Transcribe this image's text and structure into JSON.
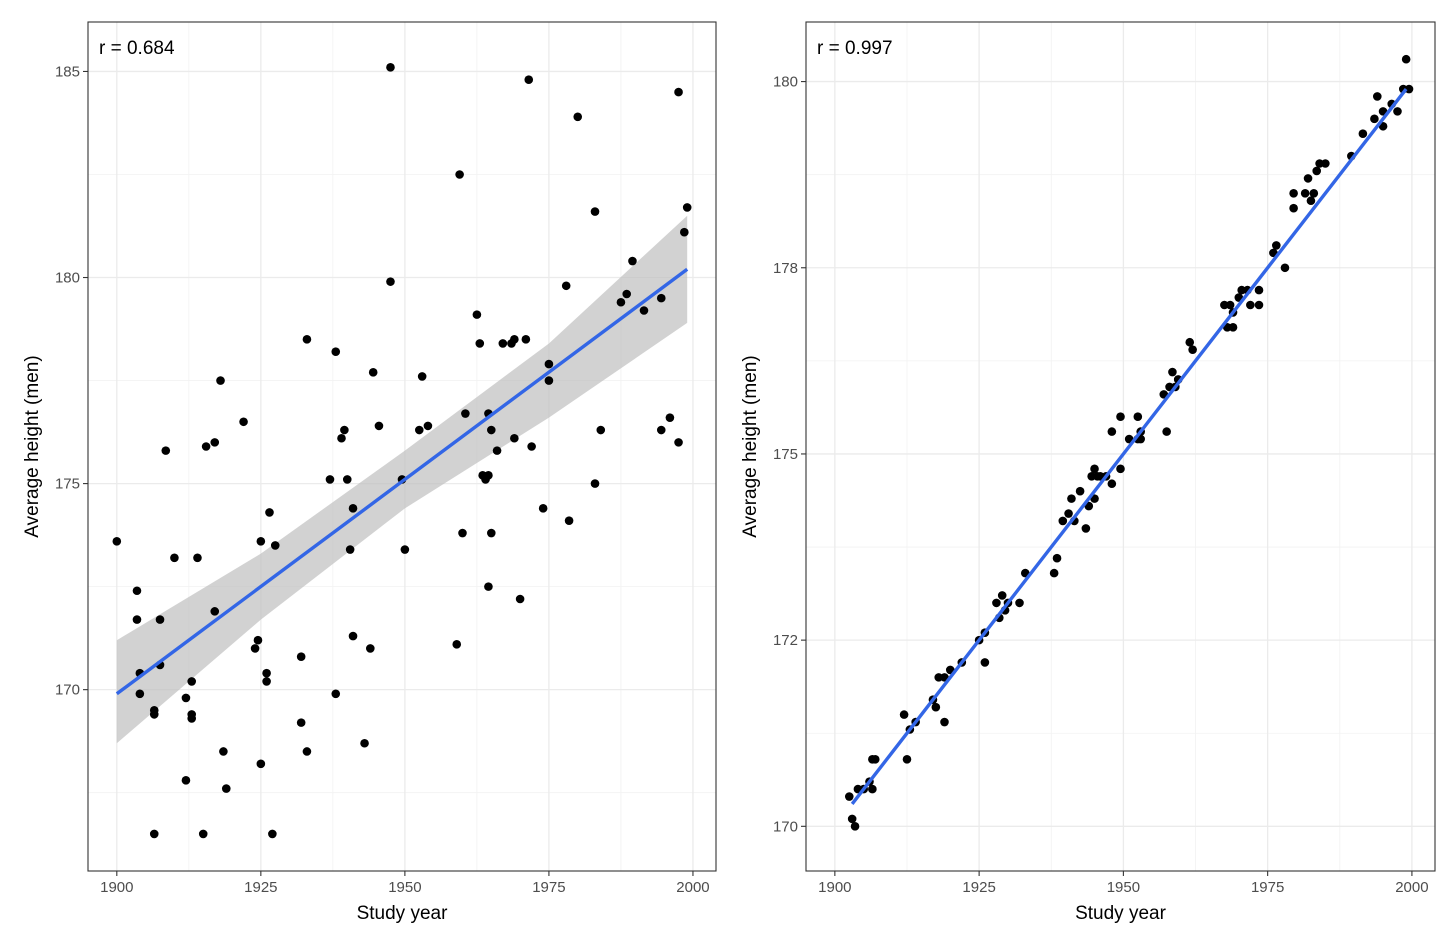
{
  "colors": {
    "point": "#000000",
    "fit_line": "#3366e6",
    "confidence_band": "#bfbfbf"
  },
  "chart_data": [
    {
      "type": "scatter",
      "title": "",
      "annotation": "r = 0.684",
      "xlabel": "Study year",
      "ylabel": "Average height (men)",
      "xlim": [
        1895,
        2004
      ],
      "ylim": [
        165.6,
        186.2
      ],
      "xticks": [
        1900,
        1925,
        1950,
        1975,
        2000
      ],
      "yticks": [
        170,
        175,
        180,
        185
      ],
      "grid": true,
      "fit": {
        "x": [
          1900,
          1999
        ],
        "y": [
          169.9,
          180.2
        ]
      },
      "band": {
        "x": [
          1900,
          1925,
          1950,
          1975,
          1999
        ],
        "upper": [
          171.2,
          173.3,
          175.8,
          178.4,
          181.5
        ],
        "lower": [
          168.7,
          171.7,
          174.4,
          176.6,
          178.9
        ]
      },
      "points": [
        [
          1900,
          173.6
        ],
        [
          1903.5,
          172.4
        ],
        [
          1903.5,
          171.7
        ],
        [
          1904,
          170.4
        ],
        [
          1904,
          169.9
        ],
        [
          1906.5,
          169.5
        ],
        [
          1906.5,
          169.4
        ],
        [
          1906.5,
          166.5
        ],
        [
          1907.5,
          171.7
        ],
        [
          1907.5,
          170.6
        ],
        [
          1908.5,
          175.8
        ],
        [
          1910,
          173.2
        ],
        [
          1912,
          167.8
        ],
        [
          1912,
          169.8
        ],
        [
          1913,
          170.2
        ],
        [
          1913,
          169.4
        ],
        [
          1913,
          169.3
        ],
        [
          1914,
          173.2
        ],
        [
          1915,
          166.5
        ],
        [
          1915.5,
          175.9
        ],
        [
          1917,
          176.0
        ],
        [
          1917,
          171.9
        ],
        [
          1918,
          177.5
        ],
        [
          1918.5,
          168.5
        ],
        [
          1919,
          167.6
        ],
        [
          1922,
          176.5
        ],
        [
          1924,
          171.0
        ],
        [
          1924.5,
          171.2
        ],
        [
          1925,
          168.2
        ],
        [
          1925,
          173.6
        ],
        [
          1926,
          170.4
        ],
        [
          1926,
          170.2
        ],
        [
          1926.5,
          174.3
        ],
        [
          1927,
          166.5
        ],
        [
          1927.5,
          173.5
        ],
        [
          1932,
          170.8
        ],
        [
          1932,
          169.2
        ],
        [
          1933,
          178.5
        ],
        [
          1933,
          168.5
        ],
        [
          1937,
          175.1
        ],
        [
          1938,
          169.9
        ],
        [
          1938,
          178.2
        ],
        [
          1939,
          176.1
        ],
        [
          1939.5,
          176.3
        ],
        [
          1940,
          175.1
        ],
        [
          1940.5,
          173.4
        ],
        [
          1941,
          174.4
        ],
        [
          1941,
          171.3
        ],
        [
          1943,
          168.7
        ],
        [
          1944,
          171.0
        ],
        [
          1944.5,
          177.7
        ],
        [
          1945.5,
          176.4
        ],
        [
          1947.5,
          185.1
        ],
        [
          1947.5,
          179.9
        ],
        [
          1949.5,
          175.1
        ],
        [
          1950,
          173.4
        ],
        [
          1952.5,
          176.3
        ],
        [
          1953,
          177.6
        ],
        [
          1954,
          176.4
        ],
        [
          1959,
          171.1
        ],
        [
          1959.5,
          182.5
        ],
        [
          1960,
          173.8
        ],
        [
          1960.5,
          176.7
        ],
        [
          1962.5,
          179.1
        ],
        [
          1963,
          178.4
        ],
        [
          1963.5,
          175.2
        ],
        [
          1964,
          175.1
        ],
        [
          1964.5,
          176.7
        ],
        [
          1964.5,
          175.2
        ],
        [
          1964.5,
          172.5
        ],
        [
          1965,
          176.3
        ],
        [
          1965,
          173.8
        ],
        [
          1966,
          175.8
        ],
        [
          1967,
          178.4
        ],
        [
          1968.5,
          178.4
        ],
        [
          1969,
          178.5
        ],
        [
          1969,
          176.1
        ],
        [
          1970,
          172.2
        ],
        [
          1971,
          178.5
        ],
        [
          1971.5,
          184.8
        ],
        [
          1972,
          175.9
        ],
        [
          1974,
          174.4
        ],
        [
          1975,
          177.9
        ],
        [
          1975,
          177.5
        ],
        [
          1978,
          179.8
        ],
        [
          1978.5,
          174.1
        ],
        [
          1980,
          183.9
        ],
        [
          1983,
          181.6
        ],
        [
          1983,
          175.0
        ],
        [
          1984,
          176.3
        ],
        [
          1987.5,
          179.4
        ],
        [
          1988.5,
          179.6
        ],
        [
          1989.5,
          180.4
        ],
        [
          1991.5,
          179.2
        ],
        [
          1994.5,
          179.5
        ],
        [
          1994.5,
          176.3
        ],
        [
          1996,
          176.6
        ],
        [
          1997.5,
          184.5
        ],
        [
          1997.5,
          176.0
        ],
        [
          1998.5,
          181.1
        ],
        [
          1999,
          181.7
        ]
      ]
    },
    {
      "type": "scatter",
      "title": "",
      "annotation": "r = 0.997",
      "xlabel": "Study year",
      "ylabel": "Average height (men)",
      "xlim": [
        1895,
        2004
      ],
      "ylim": [
        169.4,
        180.8
      ],
      "xticks": [
        1900,
        1925,
        1950,
        1975,
        2000
      ],
      "yticks": [
        170,
        172,
        175,
        178,
        180
      ],
      "ytick_values": [
        170,
        172.5,
        175,
        177.5,
        180
      ],
      "grid": true,
      "fit": {
        "x": [
          1903,
          1999
        ],
        "y": [
          170.3,
          179.9
        ]
      },
      "points": [
        [
          1902.5,
          170.4
        ],
        [
          1903,
          170.1
        ],
        [
          1903.5,
          170.0
        ],
        [
          1904,
          170.5
        ],
        [
          1905,
          170.5
        ],
        [
          1906,
          170.6
        ],
        [
          1906.5,
          170.5
        ],
        [
          1906.5,
          170.9
        ],
        [
          1907,
          170.9
        ],
        [
          1912,
          171.5
        ],
        [
          1912.5,
          170.9
        ],
        [
          1913,
          171.3
        ],
        [
          1914,
          171.4
        ],
        [
          1917,
          171.7
        ],
        [
          1917.5,
          171.6
        ],
        [
          1918,
          172.0
        ],
        [
          1919,
          172.0
        ],
        [
          1919,
          171.4
        ],
        [
          1920,
          172.1
        ],
        [
          1922,
          172.2
        ],
        [
          1925,
          172.5
        ],
        [
          1926,
          172.6
        ],
        [
          1926,
          172.2
        ],
        [
          1928,
          173.0
        ],
        [
          1928.5,
          172.8
        ],
        [
          1929,
          173.1
        ],
        [
          1929.5,
          172.9
        ],
        [
          1930,
          173.0
        ],
        [
          1932,
          173.0
        ],
        [
          1933,
          173.4
        ],
        [
          1938,
          173.4
        ],
        [
          1938.5,
          173.6
        ],
        [
          1939.5,
          174.1
        ],
        [
          1940.5,
          174.2
        ],
        [
          1941,
          174.4
        ],
        [
          1941.5,
          174.1
        ],
        [
          1942.5,
          174.5
        ],
        [
          1943.5,
          174.0
        ],
        [
          1944,
          174.3
        ],
        [
          1944.5,
          174.7
        ],
        [
          1945,
          174.8
        ],
        [
          1945,
          174.4
        ],
        [
          1945.5,
          174.7
        ],
        [
          1946,
          174.7
        ],
        [
          1947,
          174.7
        ],
        [
          1948,
          175.3
        ],
        [
          1948,
          174.6
        ],
        [
          1949.5,
          175.5
        ],
        [
          1949.5,
          174.8
        ],
        [
          1951,
          175.2
        ],
        [
          1952.5,
          175.2
        ],
        [
          1952.5,
          175.5
        ],
        [
          1953,
          175.2
        ],
        [
          1953,
          175.3
        ],
        [
          1957,
          175.8
        ],
        [
          1957.5,
          175.3
        ],
        [
          1958,
          175.9
        ],
        [
          1958.5,
          176.1
        ],
        [
          1959,
          175.9
        ],
        [
          1959.5,
          176.0
        ],
        [
          1961.5,
          176.5
        ],
        [
          1962,
          176.4
        ],
        [
          1967.5,
          177.0
        ],
        [
          1968,
          176.7
        ],
        [
          1968.5,
          177.0
        ],
        [
          1969,
          176.7
        ],
        [
          1969,
          176.9
        ],
        [
          1970,
          177.1
        ],
        [
          1970.5,
          177.2
        ],
        [
          1971.5,
          177.2
        ],
        [
          1972,
          177.0
        ],
        [
          1973.5,
          177.2
        ],
        [
          1973.5,
          177.0
        ],
        [
          1976,
          177.7
        ],
        [
          1976.5,
          177.8
        ],
        [
          1978,
          177.5
        ],
        [
          1979.5,
          178.3
        ],
        [
          1979.5,
          178.5
        ],
        [
          1981.5,
          178.5
        ],
        [
          1982,
          178.7
        ],
        [
          1982.5,
          178.4
        ],
        [
          1983,
          178.5
        ],
        [
          1983.5,
          178.8
        ],
        [
          1984,
          178.9
        ],
        [
          1985,
          178.9
        ],
        [
          1989.5,
          179.0
        ],
        [
          1991.5,
          179.3
        ],
        [
          1993.5,
          179.5
        ],
        [
          1994,
          179.8
        ],
        [
          1995,
          179.4
        ],
        [
          1995,
          179.6
        ],
        [
          1996.5,
          179.7
        ],
        [
          1997.5,
          179.6
        ],
        [
          1998.5,
          179.9
        ],
        [
          1999,
          180.3
        ],
        [
          1999.5,
          179.9
        ]
      ]
    }
  ]
}
